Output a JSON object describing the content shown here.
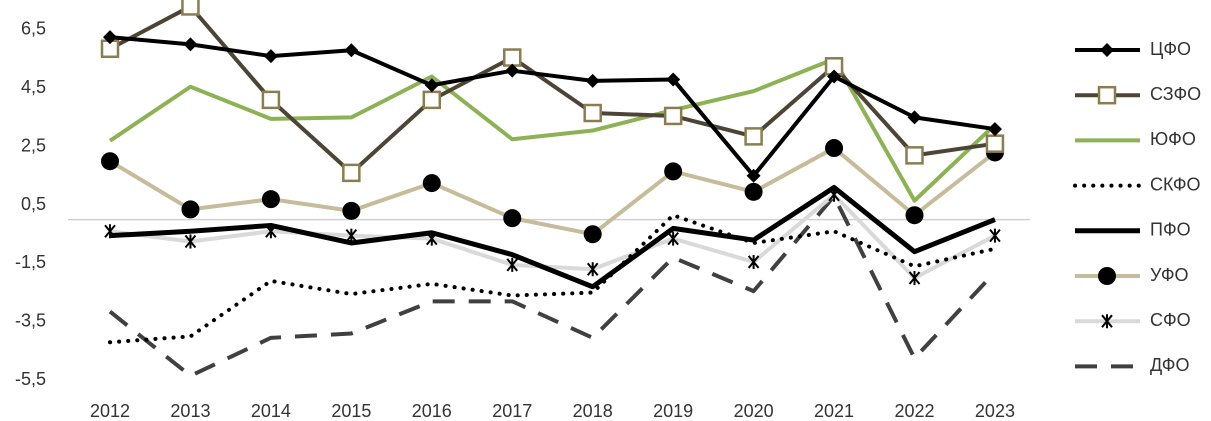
{
  "chart_data": {
    "type": "line",
    "categories": [
      "2012",
      "2013",
      "2014",
      "2015",
      "2016",
      "2017",
      "2018",
      "2019",
      "2020",
      "2021",
      "2022",
      "2023"
    ],
    "ylim": [
      -6.5,
      7.5
    ],
    "yticks": [
      {
        "value": 6.5,
        "label": "6,5"
      },
      {
        "value": 4.5,
        "label": "4,5"
      },
      {
        "value": 2.5,
        "label": "2,5"
      },
      {
        "value": 0.5,
        "label": "0,5"
      },
      {
        "value": -1.5,
        "label": "-1,5"
      },
      {
        "value": -3.5,
        "label": "-3,5"
      },
      {
        "value": -5.5,
        "label": "-5,5"
      }
    ],
    "legend": "right",
    "series": [
      {
        "name": "ЦФО",
        "color": "#000000",
        "marker": "diamond",
        "dash": "solid",
        "values": [
          6.25,
          6.0,
          5.6,
          5.8,
          4.6,
          5.1,
          4.75,
          4.8,
          1.5,
          4.9,
          3.5,
          3.1
        ]
      },
      {
        "name": "СЗФО",
        "color": "#4d4436",
        "marker": "square",
        "dash": "solid",
        "values": [
          5.85,
          7.3,
          4.1,
          1.6,
          4.1,
          5.55,
          3.65,
          3.55,
          2.85,
          5.25,
          2.2,
          2.6
        ]
      },
      {
        "name": "ЮФО",
        "color": "#8db255",
        "marker": "none",
        "dash": "solid",
        "values": [
          2.7,
          4.55,
          3.45,
          3.5,
          4.9,
          2.75,
          3.05,
          3.75,
          4.4,
          5.5,
          0.65,
          3.25
        ]
      },
      {
        "name": "СКФО",
        "color": "#000000",
        "marker": "none",
        "dash": "dotted",
        "values": [
          -4.2,
          -4.0,
          -2.1,
          -2.55,
          -2.2,
          -2.6,
          -2.5,
          0.15,
          -0.8,
          -0.4,
          -1.6,
          -1.0
        ]
      },
      {
        "name": "ПФО",
        "color": "#000000",
        "marker": "none",
        "dash": "thick",
        "values": [
          -0.55,
          -0.4,
          -0.2,
          -0.8,
          -0.45,
          -1.2,
          -2.3,
          -0.3,
          -0.7,
          1.1,
          -1.1,
          0.0
        ]
      },
      {
        "name": "УФО",
        "color": "#c6bb9a",
        "marker": "circle",
        "dash": "solid",
        "values": [
          2.0,
          0.35,
          0.7,
          0.3,
          1.25,
          0.05,
          -0.5,
          1.65,
          0.95,
          2.45,
          0.15,
          2.3
        ]
      },
      {
        "name": "СФО",
        "color": "#d9d9d9",
        "marker": "asterisk",
        "dash": "solid",
        "values": [
          -0.4,
          -0.75,
          -0.4,
          -0.55,
          -0.65,
          -1.55,
          -1.7,
          -0.65,
          -1.45,
          0.85,
          -2.0,
          -0.55
        ]
      },
      {
        "name": "ДФО",
        "color": "#404040",
        "marker": "none",
        "dash": "dashed",
        "values": [
          -3.15,
          -5.35,
          -4.05,
          -3.9,
          -2.8,
          -2.8,
          -4.05,
          -1.3,
          -2.45,
          0.8,
          -4.75,
          -1.8
        ]
      }
    ]
  }
}
